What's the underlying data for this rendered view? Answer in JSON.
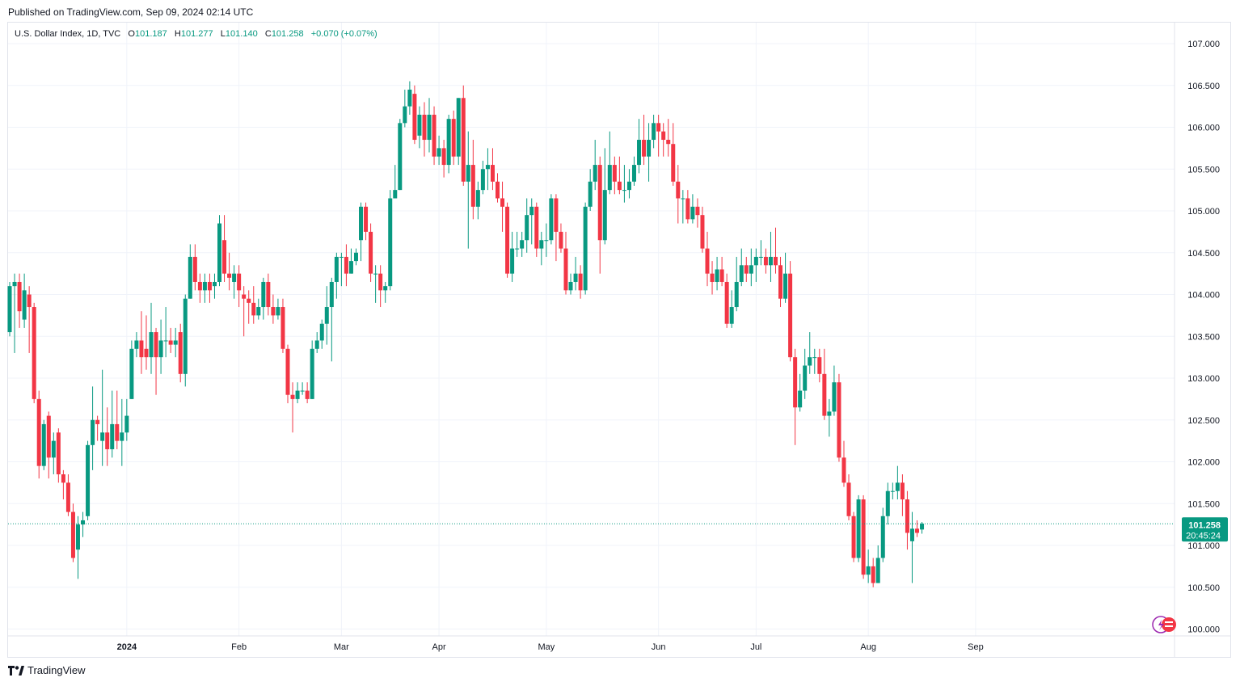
{
  "header": {
    "published": "Published on TradingView.com, Sep 09, 2024 02:14 UTC"
  },
  "legend": {
    "symbol": "U.S. Dollar Index, 1D, TVC",
    "o_label": "O",
    "o_value": "101.187",
    "h_label": "H",
    "h_value": "101.277",
    "l_label": "L",
    "l_value": "101.140",
    "c_label": "C",
    "c_value": "101.258",
    "change": "+0.070 (+0.07%)"
  },
  "footer": {
    "brand": "TradingView",
    "logo_icon": "tradingview-logo-icon"
  },
  "colors": {
    "up": "#089981",
    "down": "#f23645",
    "grid": "#f0f3fa",
    "axis_text": "#131722",
    "border": "#e0e3eb"
  },
  "chart_data": {
    "type": "candlestick",
    "title": "U.S. Dollar Index, 1D, TVC",
    "ylim": [
      100.0,
      107.2
    ],
    "y_ticks": [
      "100.000",
      "100.500",
      "101.000",
      "101.500",
      "102.000",
      "102.500",
      "103.000",
      "103.500",
      "104.000",
      "104.500",
      "105.000",
      "105.500",
      "106.000",
      "106.500",
      "107.000"
    ],
    "x_ticks": [
      {
        "label": "2024",
        "index": 24
      },
      {
        "label": "Feb",
        "index": 47
      },
      {
        "label": "Mar",
        "index": 68
      },
      {
        "label": "Apr",
        "index": 88
      },
      {
        "label": "May",
        "index": 110
      },
      {
        "label": "Jun",
        "index": 133
      },
      {
        "label": "Jul",
        "index": 153
      },
      {
        "label": "Aug",
        "index": 176
      },
      {
        "label": "Sep",
        "index": 198
      }
    ],
    "last_price": "101.258",
    "countdown": "20:45:24",
    "candles": [
      [
        103.55,
        104.1,
        104.15,
        103.5
      ],
      [
        104.1,
        104.15,
        104.25,
        103.3
      ],
      [
        104.15,
        103.8,
        104.25,
        103.6
      ],
      [
        103.7,
        104.05,
        104.25,
        103.6
      ],
      [
        104.0,
        103.85,
        104.1,
        103.3
      ],
      [
        103.85,
        102.75,
        103.9,
        102.7
      ],
      [
        102.75,
        101.95,
        102.85,
        101.8
      ],
      [
        101.95,
        102.45,
        102.5,
        101.9
      ],
      [
        102.55,
        102.05,
        102.6,
        101.8
      ],
      [
        102.05,
        102.25,
        102.35,
        101.85
      ],
      [
        102.35,
        101.85,
        102.4,
        101.75
      ],
      [
        101.85,
        101.75,
        101.9,
        101.55
      ],
      [
        101.75,
        101.4,
        101.85,
        101.35
      ],
      [
        101.4,
        100.85,
        101.5,
        100.8
      ],
      [
        100.95,
        101.25,
        101.35,
        100.6
      ],
      [
        101.25,
        101.3,
        101.4,
        101.1
      ],
      [
        101.35,
        102.2,
        102.25,
        101.3
      ],
      [
        102.2,
        102.5,
        102.9,
        101.9
      ],
      [
        102.5,
        102.45,
        102.55,
        102.25
      ],
      [
        102.25,
        102.35,
        103.1,
        101.95
      ],
      [
        102.35,
        102.15,
        102.65,
        101.95
      ],
      [
        102.15,
        102.45,
        102.85,
        102.05
      ],
      [
        102.45,
        102.25,
        102.85,
        102.15
      ],
      [
        102.25,
        102.35,
        102.75,
        101.95
      ],
      [
        102.35,
        102.55,
        102.75,
        102.25
      ],
      [
        102.75,
        103.35,
        103.45,
        102.75
      ],
      [
        103.35,
        103.45,
        103.55,
        103.25
      ],
      [
        103.45,
        103.25,
        103.8,
        103.05
      ],
      [
        103.35,
        103.25,
        103.75,
        103.1
      ],
      [
        103.25,
        103.55,
        103.9,
        103.05
      ],
      [
        103.55,
        103.25,
        103.6,
        102.8
      ],
      [
        103.25,
        103.45,
        103.7,
        103.05
      ],
      [
        103.45,
        103.45,
        103.85,
        103.25
      ],
      [
        103.45,
        103.4,
        103.6,
        103.3
      ],
      [
        103.4,
        103.45,
        103.6,
        103.25
      ],
      [
        103.55,
        103.05,
        103.65,
        102.95
      ],
      [
        103.05,
        103.95,
        104.0,
        102.9
      ],
      [
        103.95,
        104.45,
        104.6,
        103.95
      ],
      [
        104.45,
        104.15,
        104.6,
        104.05
      ],
      [
        104.15,
        104.05,
        104.25,
        103.9
      ],
      [
        104.05,
        104.15,
        104.25,
        103.9
      ],
      [
        104.15,
        104.05,
        104.25,
        103.9
      ],
      [
        104.1,
        104.15,
        104.25,
        103.95
      ],
      [
        104.15,
        104.85,
        104.95,
        104.1
      ],
      [
        104.65,
        104.25,
        104.95,
        104.15
      ],
      [
        104.25,
        104.2,
        104.5,
        104.05
      ],
      [
        104.15,
        104.25,
        104.35,
        103.95
      ],
      [
        104.25,
        104.05,
        104.35,
        103.85
      ],
      [
        104.0,
        103.95,
        104.1,
        103.5
      ],
      [
        103.95,
        103.9,
        104.05,
        103.65
      ],
      [
        103.9,
        103.75,
        104.1,
        103.65
      ],
      [
        103.75,
        103.85,
        103.95,
        103.7
      ],
      [
        103.85,
        104.15,
        104.2,
        103.7
      ],
      [
        104.15,
        103.85,
        104.25,
        103.75
      ],
      [
        103.85,
        103.75,
        104.0,
        103.65
      ],
      [
        103.75,
        103.85,
        103.95,
        103.7
      ],
      [
        103.85,
        103.35,
        103.95,
        103.3
      ],
      [
        103.35,
        102.8,
        103.4,
        102.7
      ],
      [
        102.8,
        102.75,
        102.95,
        102.35
      ],
      [
        102.75,
        102.85,
        102.95,
        102.7
      ],
      [
        102.85,
        102.85,
        102.95,
        102.8
      ],
      [
        102.85,
        102.75,
        102.95,
        102.7
      ],
      [
        102.75,
        103.35,
        103.45,
        102.75
      ],
      [
        103.35,
        103.45,
        103.55,
        103.3
      ],
      [
        103.45,
        103.65,
        103.7,
        103.35
      ],
      [
        103.65,
        103.85,
        104.1,
        103.4
      ],
      [
        103.85,
        104.15,
        104.2,
        103.2
      ],
      [
        104.15,
        104.45,
        104.5,
        103.95
      ],
      [
        104.45,
        104.45,
        104.5,
        104.1
      ],
      [
        104.45,
        104.25,
        104.6,
        104.1
      ],
      [
        104.25,
        104.4,
        104.55,
        104.25
      ],
      [
        104.4,
        104.5,
        104.55,
        104.35
      ],
      [
        104.65,
        105.05,
        105.1,
        104.4
      ],
      [
        105.05,
        104.75,
        105.1,
        104.65
      ],
      [
        104.75,
        104.25,
        104.85,
        104.15
      ],
      [
        104.25,
        104.25,
        104.35,
        103.9
      ],
      [
        104.25,
        104.05,
        104.35,
        103.85
      ],
      [
        104.05,
        104.1,
        104.15,
        103.9
      ],
      [
        104.1,
        105.15,
        105.25,
        104.05
      ],
      [
        105.15,
        105.25,
        105.55,
        105.15
      ],
      [
        105.25,
        106.05,
        106.1,
        105.25
      ],
      [
        106.05,
        106.25,
        106.45,
        106.0
      ],
      [
        106.25,
        106.45,
        106.55,
        106.15
      ],
      [
        106.4,
        105.85,
        106.5,
        105.8
      ],
      [
        105.9,
        106.15,
        106.25,
        105.75
      ],
      [
        106.15,
        105.85,
        106.3,
        105.65
      ],
      [
        105.85,
        106.15,
        106.35,
        105.7
      ],
      [
        106.15,
        105.65,
        106.25,
        105.55
      ],
      [
        105.65,
        105.75,
        105.9,
        105.55
      ],
      [
        105.75,
        105.55,
        105.85,
        105.4
      ],
      [
        105.55,
        106.1,
        106.15,
        105.45
      ],
      [
        106.1,
        105.65,
        106.2,
        105.55
      ],
      [
        105.65,
        106.35,
        106.35,
        105.55
      ],
      [
        106.35,
        105.35,
        106.5,
        105.3
      ],
      [
        105.35,
        105.55,
        105.95,
        104.55
      ],
      [
        105.55,
        105.05,
        105.85,
        104.9
      ],
      [
        105.05,
        105.25,
        105.35,
        104.9
      ],
      [
        105.25,
        105.5,
        105.6,
        105.2
      ],
      [
        105.5,
        105.55,
        105.75,
        105.25
      ],
      [
        105.55,
        105.35,
        105.75,
        105.25
      ],
      [
        105.35,
        105.15,
        105.45,
        105.1
      ],
      [
        105.15,
        105.05,
        105.35,
        104.75
      ],
      [
        105.05,
        104.25,
        105.1,
        104.2
      ],
      [
        104.25,
        104.55,
        104.75,
        104.15
      ],
      [
        104.55,
        104.55,
        104.75,
        104.45
      ],
      [
        104.55,
        104.65,
        104.75,
        104.45
      ],
      [
        104.65,
        104.95,
        105.15,
        104.5
      ],
      [
        104.95,
        105.05,
        105.15,
        104.6
      ],
      [
        105.05,
        104.55,
        105.1,
        104.45
      ],
      [
        104.55,
        104.65,
        104.75,
        104.35
      ],
      [
        104.65,
        104.65,
        104.85,
        104.45
      ],
      [
        104.65,
        105.15,
        105.2,
        104.6
      ],
      [
        105.15,
        104.75,
        105.2,
        104.4
      ],
      [
        104.75,
        104.55,
        104.85,
        104.5
      ],
      [
        104.55,
        104.05,
        104.75,
        104.0
      ],
      [
        104.05,
        104.15,
        104.25,
        104.0
      ],
      [
        104.15,
        104.25,
        104.45,
        104.05
      ],
      [
        104.25,
        104.05,
        104.35,
        103.95
      ],
      [
        104.05,
        105.05,
        105.1,
        104.0
      ],
      [
        105.05,
        105.35,
        105.5,
        105.0
      ],
      [
        105.35,
        105.55,
        105.85,
        105.25
      ],
      [
        105.55,
        104.65,
        105.65,
        104.25
      ],
      [
        104.65,
        105.25,
        105.75,
        104.6
      ],
      [
        105.25,
        105.55,
        105.95,
        105.2
      ],
      [
        105.55,
        105.35,
        105.65,
        105.2
      ],
      [
        105.35,
        105.25,
        105.65,
        105.2
      ],
      [
        105.25,
        105.25,
        105.55,
        105.1
      ],
      [
        105.25,
        105.35,
        105.5,
        105.15
      ],
      [
        105.35,
        105.55,
        105.65,
        105.3
      ],
      [
        105.55,
        105.85,
        106.1,
        105.45
      ],
      [
        105.85,
        105.65,
        106.15,
        105.55
      ],
      [
        105.65,
        105.85,
        106.05,
        105.35
      ],
      [
        105.85,
        106.05,
        106.15,
        105.75
      ],
      [
        106.05,
        105.95,
        106.15,
        105.65
      ],
      [
        105.95,
        105.85,
        106.05,
        105.65
      ],
      [
        105.85,
        105.8,
        106.1,
        105.65
      ],
      [
        105.8,
        105.35,
        106.05,
        105.3
      ],
      [
        105.35,
        105.15,
        105.55,
        104.85
      ],
      [
        105.15,
        105.15,
        105.25,
        104.85
      ],
      [
        105.15,
        104.9,
        105.25,
        104.85
      ],
      [
        104.9,
        105.05,
        105.2,
        104.85
      ],
      [
        105.05,
        104.95,
        105.15,
        104.8
      ],
      [
        104.95,
        104.55,
        105.05,
        104.5
      ],
      [
        104.55,
        104.25,
        104.75,
        104.1
      ],
      [
        104.25,
        104.15,
        104.4,
        104.0
      ],
      [
        104.15,
        104.3,
        104.45,
        104.05
      ],
      [
        104.3,
        104.15,
        104.45,
        104.1
      ],
      [
        104.15,
        103.65,
        104.25,
        103.6
      ],
      [
        103.65,
        103.85,
        104.05,
        103.6
      ],
      [
        103.85,
        104.15,
        104.45,
        103.8
      ],
      [
        104.15,
        104.35,
        104.55,
        104.1
      ],
      [
        104.35,
        104.25,
        104.45,
        104.15
      ],
      [
        104.25,
        104.35,
        104.55,
        104.1
      ],
      [
        104.35,
        104.45,
        104.55,
        104.15
      ],
      [
        104.45,
        104.45,
        104.65,
        104.35
      ],
      [
        104.45,
        104.35,
        104.55,
        104.25
      ],
      [
        104.35,
        104.45,
        104.75,
        104.15
      ],
      [
        104.45,
        104.35,
        104.8,
        104.25
      ],
      [
        104.35,
        103.95,
        104.45,
        103.85
      ],
      [
        103.95,
        104.25,
        104.5,
        103.9
      ],
      [
        104.25,
        103.25,
        104.4,
        103.2
      ],
      [
        103.25,
        102.65,
        103.35,
        102.2
      ],
      [
        102.65,
        102.85,
        103.05,
        102.6
      ],
      [
        102.85,
        103.15,
        103.35,
        102.75
      ],
      [
        103.15,
        103.25,
        103.55,
        103.05
      ],
      [
        103.25,
        103.25,
        103.35,
        103.05
      ],
      [
        103.25,
        103.05,
        103.35,
        102.95
      ],
      [
        103.05,
        102.55,
        103.35,
        102.5
      ],
      [
        102.55,
        102.6,
        102.75,
        102.3
      ],
      [
        102.6,
        102.95,
        103.15,
        102.55
      ],
      [
        102.95,
        102.05,
        103.05,
        102.0
      ],
      [
        102.05,
        101.75,
        102.25,
        101.7
      ],
      [
        101.75,
        101.35,
        101.85,
        101.3
      ],
      [
        101.35,
        100.85,
        101.4,
        100.8
      ],
      [
        100.85,
        101.55,
        101.6,
        100.8
      ],
      [
        101.55,
        100.65,
        101.6,
        100.6
      ],
      [
        100.65,
        100.75,
        100.95,
        100.55
      ],
      [
        100.75,
        100.55,
        100.85,
        100.5
      ],
      [
        100.55,
        100.85,
        101.0,
        100.55
      ],
      [
        100.85,
        101.35,
        101.45,
        100.8
      ],
      [
        101.35,
        101.65,
        101.75,
        101.25
      ],
      [
        101.65,
        101.65,
        101.75,
        101.55
      ],
      [
        101.65,
        101.75,
        101.95,
        101.55
      ],
      [
        101.75,
        101.55,
        101.85,
        101.35
      ],
      [
        101.55,
        101.15,
        101.65,
        100.95
      ],
      [
        101.05,
        101.2,
        101.4,
        100.55
      ],
      [
        101.2,
        101.15,
        101.3,
        101.1
      ],
      [
        101.19,
        101.26,
        101.28,
        101.14
      ]
    ]
  }
}
